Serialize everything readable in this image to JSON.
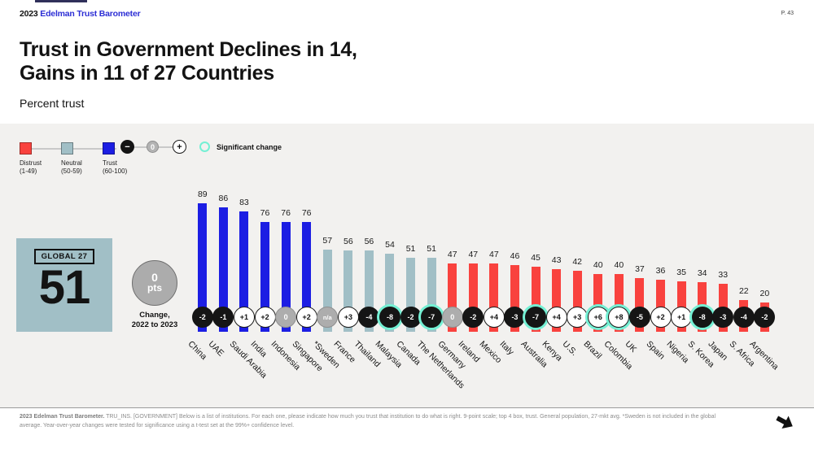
{
  "page": {
    "logo_year": "2023",
    "logo_brand": "Edelman Trust Barometer",
    "page_number": "P. 43",
    "title_line1": "Trust in Government Declines in 14,",
    "title_line2": "Gains in 11 of 27 Countries",
    "subtitle": "Percent trust"
  },
  "legend": {
    "distrust_label": "Distrust",
    "distrust_range": "(1-49)",
    "neutral_label": "Neutral",
    "neutral_range": "(50-59)",
    "trust_label": "Trust",
    "trust_range": "(60-100)",
    "scale_minus": "−",
    "scale_zero": "0",
    "scale_plus": "+",
    "significant_label": "Significant change"
  },
  "global": {
    "badge_label": "GLOBAL 27",
    "value": "51",
    "change_value": "0",
    "change_unit": "pts",
    "change_caption_line1": "Change,",
    "change_caption_line2": "2022 to 2023"
  },
  "chart_data": {
    "type": "bar",
    "title": "Trust in Government Declines in 14, Gains in 11 of 27 Countries",
    "ylabel": "Percent trust",
    "ylim": [
      0,
      100
    ],
    "grid": false,
    "categories": [
      "China",
      "UAE",
      "Saudi Arabia",
      "India",
      "Indonesia",
      "Singapore",
      "*Sweden",
      "France",
      "Thailand",
      "Malaysia",
      "Canada",
      "The Netherlands",
      "Germany",
      "Ireland",
      "Mexico",
      "Italy",
      "Australia",
      "Kenya",
      "U.S.",
      "Brazil",
      "Colombia",
      "UK",
      "Spain",
      "Nigeria",
      "S. Korea",
      "Japan",
      "S. Africa",
      "Argentina"
    ],
    "values": [
      89,
      86,
      83,
      76,
      76,
      76,
      57,
      56,
      56,
      54,
      51,
      51,
      47,
      47,
      47,
      46,
      45,
      43,
      42,
      40,
      40,
      37,
      36,
      35,
      34,
      33,
      22,
      20
    ],
    "changes": [
      "-2",
      "-1",
      "+1",
      "+2",
      "0",
      "+2",
      "n/a",
      "+3",
      "-4",
      "-8",
      "-2",
      "-7",
      "0",
      "-2",
      "+4",
      "-3",
      "-7",
      "+4",
      "+3",
      "+6",
      "+8",
      "-5",
      "+2",
      "+1",
      "-8",
      "-3",
      "-4",
      "-2"
    ],
    "significant": [
      false,
      false,
      false,
      false,
      false,
      false,
      false,
      false,
      false,
      true,
      false,
      true,
      false,
      false,
      false,
      false,
      true,
      false,
      false,
      true,
      true,
      false,
      false,
      false,
      true,
      false,
      false,
      false
    ],
    "segment_rule": "value>=60 trust(blue), 50-59 neutral(gray-blue), <50 distrust(red)"
  },
  "colors": {
    "trust_blue": "#1c1ee3",
    "distrust_red": "#f9423e",
    "neutral": "#a1bfc6",
    "significant_ring": "#74f0d4",
    "badge_negative": "#151515",
    "badge_positive": "#ffffff",
    "badge_zero": "#adadad",
    "panel_bg": "#f2f1ef",
    "brand_blue": "#2d2fd5"
  },
  "footer": {
    "lead": "2023 Edelman Trust Barometer.",
    "body": " TRU_INS. [GOVERNMENT] Below is a list of institutions. For each one, please indicate how much you trust that institution to do what is right. 9-point scale; top 4 box, trust. General population, 27-mkt avg. *Sweden is not included in the global average. Year-over-year changes were tested for significance using a t-test set at the 99%+ confidence level."
  }
}
